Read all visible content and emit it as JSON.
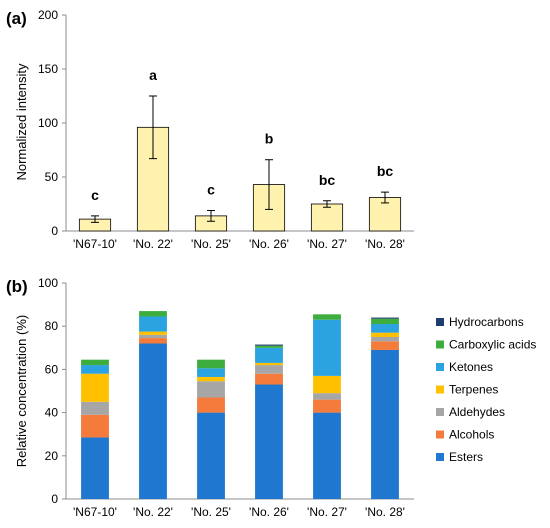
{
  "chart_data": [
    {
      "panel": "(a)",
      "type": "bar",
      "categories": [
        "'N67-10'",
        "'No. 22'",
        "'No. 25'",
        "'No. 26'",
        "'No. 27'",
        "'No. 28'"
      ],
      "values": [
        11,
        96,
        14,
        43,
        25,
        31
      ],
      "errors": [
        3,
        29,
        5,
        23,
        3,
        5
      ],
      "significance": [
        "c",
        "a",
        "c",
        "b",
        "bc",
        "bc"
      ],
      "ylabel": "Normalized intensity",
      "ylim": [
        0,
        200
      ],
      "yticks": [
        0,
        50,
        100,
        150,
        200
      ],
      "bar_color": "#FFF2AE",
      "grid": false
    },
    {
      "panel": "(b)",
      "type": "bar",
      "stacked": true,
      "categories": [
        "'N67-10'",
        "'No. 22'",
        "'No. 25'",
        "'No. 26'",
        "'No. 27'",
        "'No. 28'"
      ],
      "series": [
        {
          "name": "Esters",
          "color": "#1F77D0",
          "values": [
            28.5,
            72,
            40,
            53,
            40,
            69
          ]
        },
        {
          "name": "Alcohols",
          "color": "#F47B3C",
          "values": [
            10.5,
            2.5,
            7,
            5,
            6,
            4
          ]
        },
        {
          "name": "Aldehydes",
          "color": "#A6A6A6",
          "values": [
            6,
            1.5,
            7.5,
            4,
            3,
            2
          ]
        },
        {
          "name": "Terpenes",
          "color": "#FFC000",
          "values": [
            13,
            1.5,
            2,
            1,
            8,
            2
          ]
        },
        {
          "name": "Ketones",
          "color": "#2BA3E0",
          "values": [
            4,
            7,
            4,
            7,
            26,
            4
          ]
        },
        {
          "name": "Carboxylic acids",
          "color": "#3DAE3D",
          "values": [
            2.5,
            2.5,
            4,
            1,
            2.5,
            2.5
          ]
        },
        {
          "name": "Hydrocarbons",
          "color": "#1F3C6E",
          "values": [
            0,
            0,
            0,
            0.5,
            0,
            0.5
          ]
        }
      ],
      "ylabel": "Relative concentration (%)",
      "ylim": [
        0,
        100
      ],
      "yticks": [
        0,
        20,
        40,
        60,
        80,
        100
      ],
      "legend_position": "right",
      "grid": false
    }
  ]
}
